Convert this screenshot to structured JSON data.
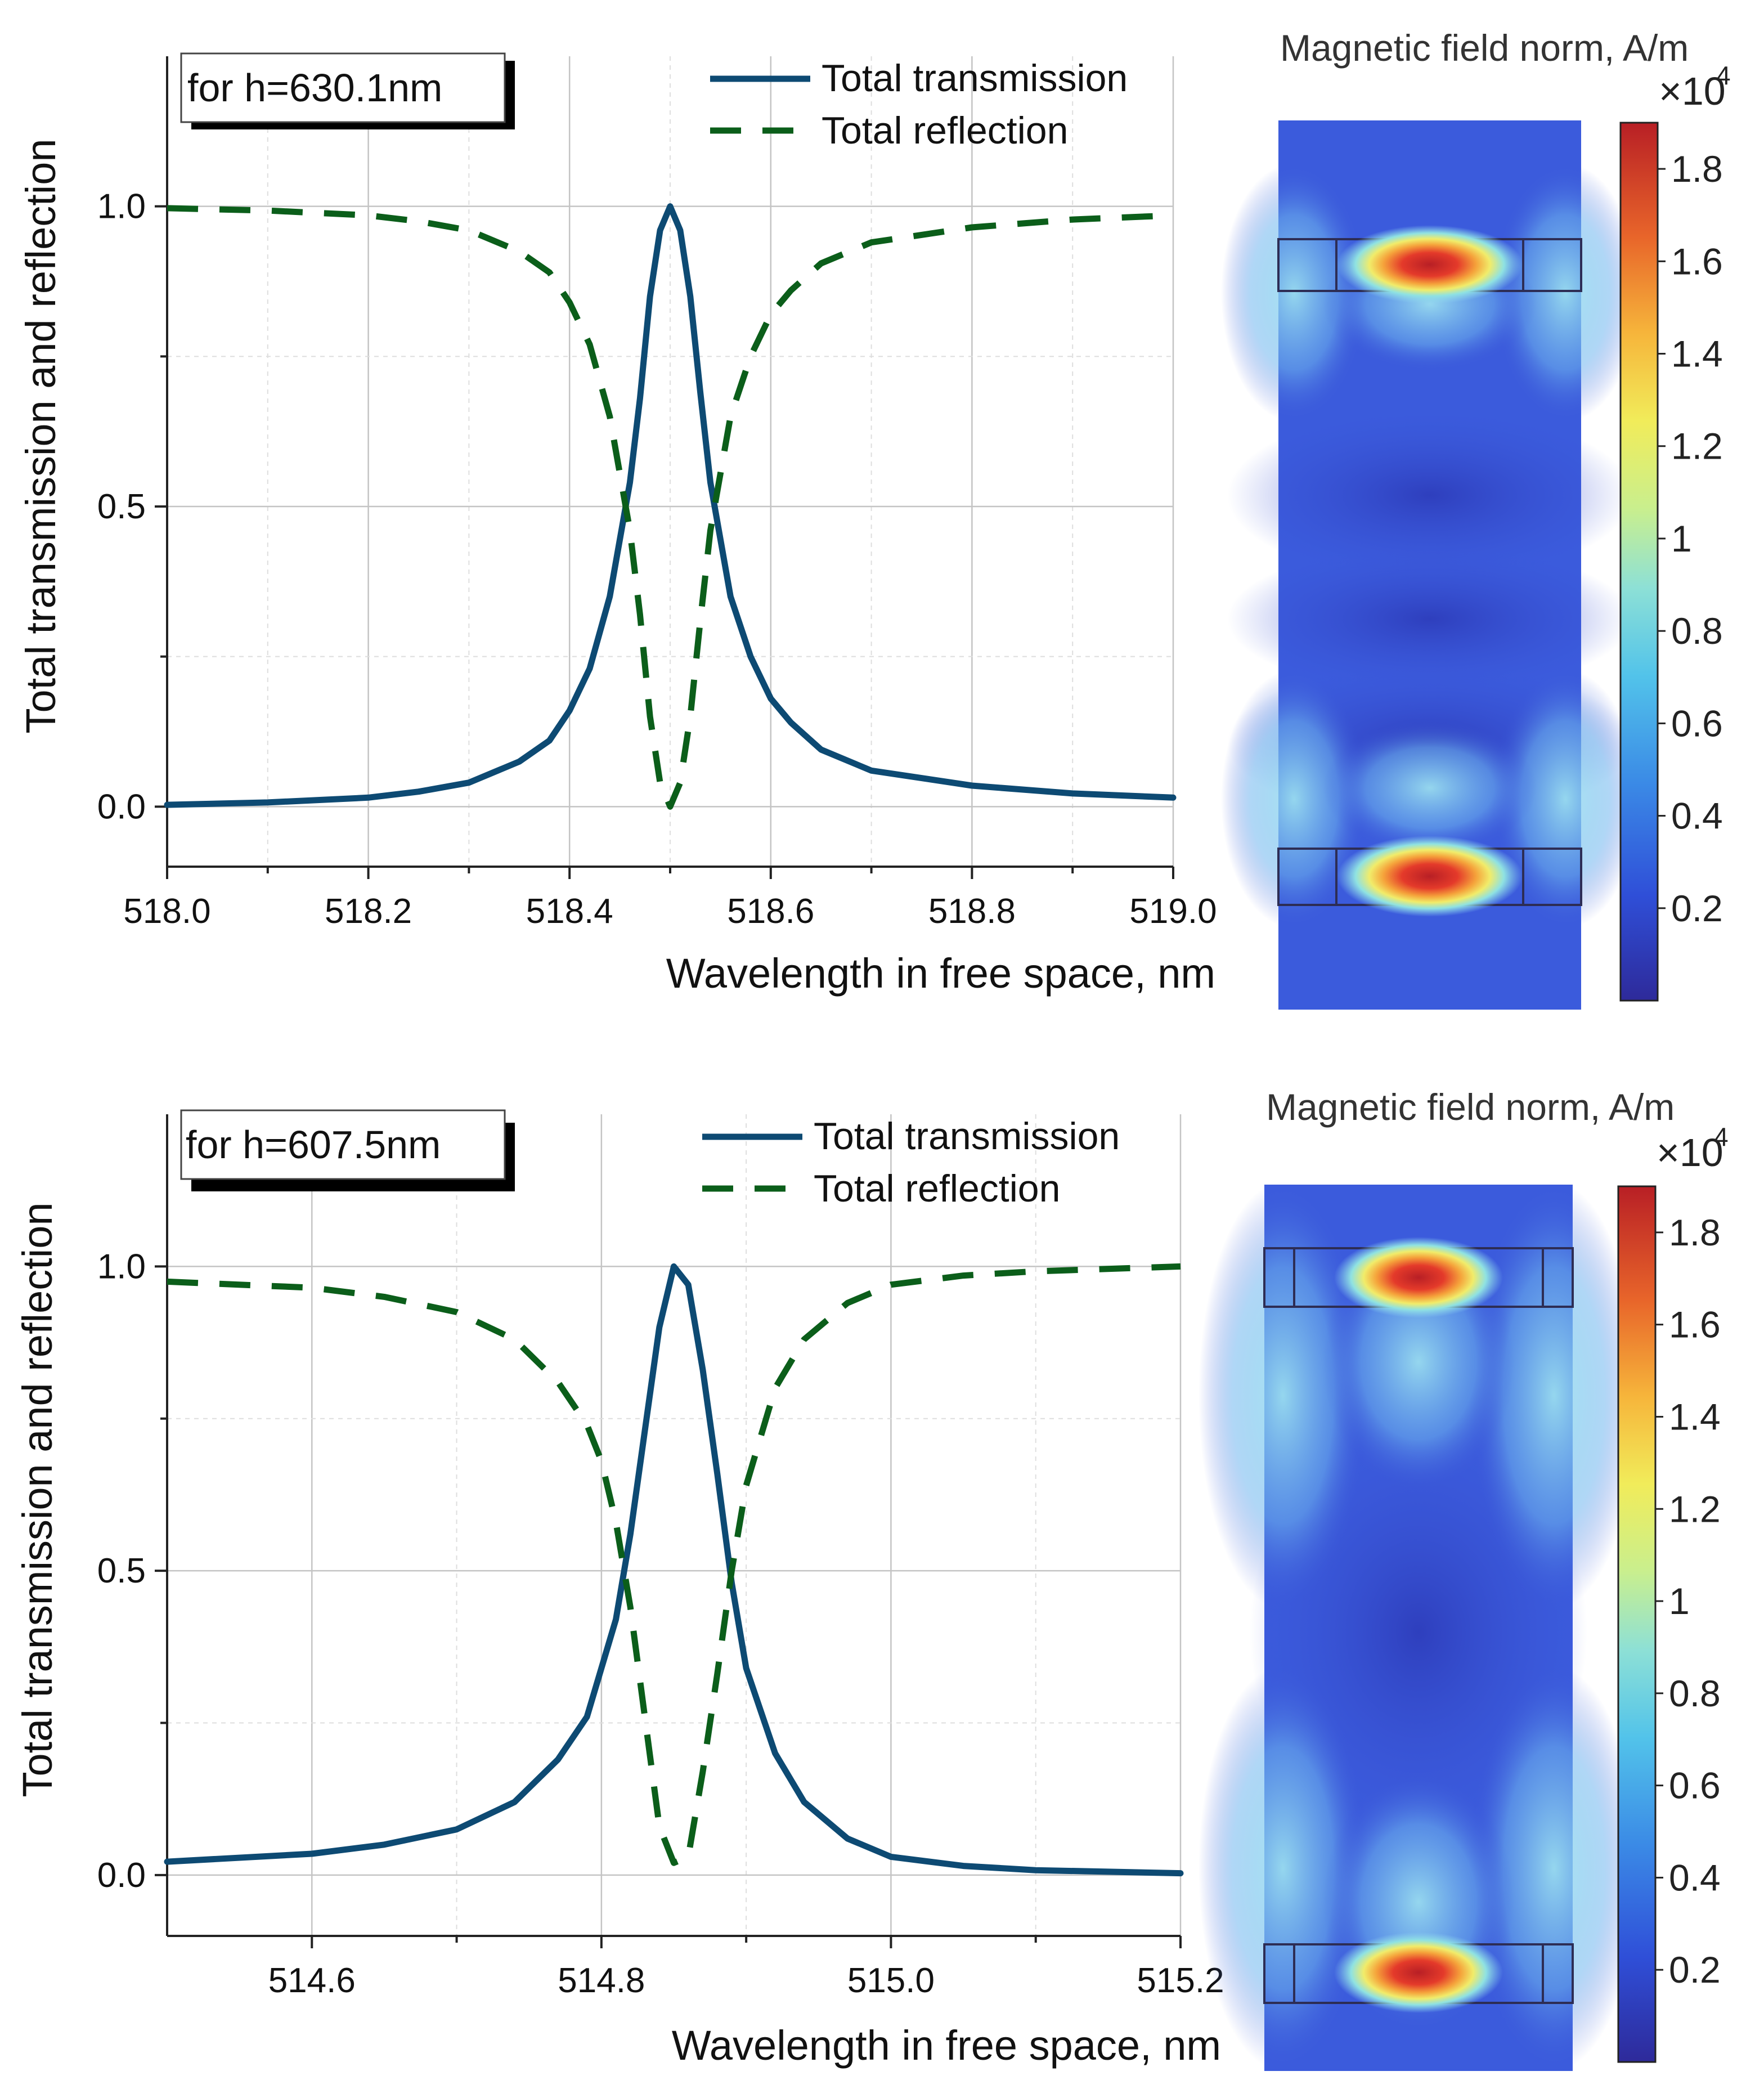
{
  "panels": [
    {
      "chart_data": {
        "type": "line",
        "title": "",
        "annotation": "for h=630.1nm",
        "xlabel": "Wavelength in free space, nm",
        "ylabel": "Total transmission and reflection",
        "xlim": [
          518.0,
          519.0
        ],
        "ylim": [
          -0.1,
          1.25
        ],
        "xticks": [
          518.0,
          518.2,
          518.4,
          518.6,
          518.8,
          519.0
        ],
        "xtick_labels": [
          "518.0",
          "518.2",
          "518.4",
          "518.6",
          "518.8",
          "519.0"
        ],
        "yticks": [
          0.0,
          0.5,
          1.0
        ],
        "ytick_labels": [
          "0.0",
          "0.5",
          "1.0"
        ],
        "grid": true,
        "legend_position": "top-right",
        "series": [
          {
            "name": "Total transmission",
            "style": "solid",
            "color": "#0d4a73",
            "x": [
              518.0,
              518.1,
              518.2,
              518.25,
              518.3,
              518.35,
              518.38,
              518.4,
              518.42,
              518.44,
              518.46,
              518.47,
              518.48,
              518.49,
              518.5,
              518.51,
              518.52,
              518.53,
              518.54,
              518.56,
              518.58,
              518.6,
              518.62,
              518.65,
              518.7,
              518.8,
              518.9,
              519.0
            ],
            "y": [
              0.003,
              0.007,
              0.015,
              0.025,
              0.04,
              0.075,
              0.11,
              0.16,
              0.23,
              0.35,
              0.54,
              0.68,
              0.85,
              0.96,
              1.0,
              0.96,
              0.85,
              0.69,
              0.54,
              0.35,
              0.25,
              0.18,
              0.14,
              0.095,
              0.06,
              0.035,
              0.022,
              0.015
            ]
          },
          {
            "name": "Total reflection",
            "style": "dashed",
            "color": "#0b5e1a",
            "x": [
              518.0,
              518.1,
              518.2,
              518.25,
              518.3,
              518.35,
              518.38,
              518.4,
              518.42,
              518.44,
              518.46,
              518.47,
              518.48,
              518.49,
              518.5,
              518.51,
              518.52,
              518.53,
              518.54,
              518.56,
              518.58,
              518.6,
              518.62,
              518.65,
              518.7,
              518.8,
              518.9,
              519.0
            ],
            "y": [
              0.997,
              0.993,
              0.985,
              0.975,
              0.96,
              0.925,
              0.89,
              0.84,
              0.77,
              0.65,
              0.46,
              0.32,
              0.15,
              0.04,
              0.0,
              0.04,
              0.15,
              0.31,
              0.46,
              0.65,
              0.75,
              0.82,
              0.86,
              0.905,
              0.94,
              0.965,
              0.978,
              0.985
            ]
          }
        ]
      },
      "heatmap": {
        "title": "Magnetic field norm, A/m",
        "colorbar_multiplier": "×10",
        "colorbar_exponent": "4",
        "colorbar_ticks": [
          "1.8",
          "1.6",
          "1.4",
          "1.2",
          "1",
          "0.8",
          "0.6",
          "0.4",
          "0.2"
        ],
        "colorbar_tick_values": [
          1.8,
          1.6,
          1.4,
          1.2,
          1.0,
          0.8,
          0.6,
          0.4,
          0.2
        ],
        "colorbar_max": 1.9,
        "colorbar_min": 0.0
      }
    },
    {
      "chart_data": {
        "type": "line",
        "title": "",
        "annotation": "for h=607.5nm",
        "xlabel": "Wavelength in free space, nm",
        "ylabel": "Total transmission and reflection",
        "xlim": [
          514.5,
          515.2
        ],
        "ylim": [
          -0.1,
          1.25
        ],
        "xticks": [
          514.6,
          514.8,
          515.0,
          515.2
        ],
        "xtick_labels": [
          "514.6",
          "514.8",
          "515.0",
          "515.2"
        ],
        "yticks": [
          0.0,
          0.5,
          1.0
        ],
        "ytick_labels": [
          "0.0",
          "0.5",
          "1.0"
        ],
        "grid": true,
        "legend_position": "top-right",
        "series": [
          {
            "name": "Total transmission",
            "style": "solid",
            "color": "#0d4a73",
            "x": [
              514.5,
              514.6,
              514.65,
              514.7,
              514.74,
              514.77,
              514.79,
              514.81,
              514.82,
              514.83,
              514.84,
              514.85,
              514.86,
              514.87,
              514.88,
              514.89,
              514.9,
              514.92,
              514.94,
              514.97,
              515.0,
              515.05,
              515.1,
              515.2
            ],
            "y": [
              0.022,
              0.035,
              0.05,
              0.075,
              0.12,
              0.19,
              0.26,
              0.42,
              0.56,
              0.73,
              0.9,
              1.0,
              0.97,
              0.83,
              0.66,
              0.48,
              0.34,
              0.2,
              0.12,
              0.06,
              0.03,
              0.015,
              0.008,
              0.003
            ]
          },
          {
            "name": "Total reflection",
            "style": "dashed",
            "color": "#0b5e1a",
            "x": [
              514.5,
              514.6,
              514.65,
              514.7,
              514.74,
              514.77,
              514.79,
              514.8,
              514.81,
              514.82,
              514.83,
              514.84,
              514.85,
              514.86,
              514.87,
              514.88,
              514.89,
              514.9,
              514.92,
              514.94,
              514.97,
              515.0,
              515.05,
              515.1,
              515.2
            ],
            "y": [
              0.975,
              0.965,
              0.95,
              0.925,
              0.88,
              0.81,
              0.74,
              0.68,
              0.58,
              0.44,
              0.26,
              0.08,
              0.02,
              0.03,
              0.17,
              0.33,
              0.5,
              0.64,
              0.8,
              0.88,
              0.94,
              0.97,
              0.985,
              0.992,
              1.0
            ]
          }
        ]
      },
      "heatmap": {
        "title": "Magnetic field norm, A/m",
        "colorbar_multiplier": "×10",
        "colorbar_exponent": "4",
        "colorbar_ticks": [
          "1.8",
          "1.6",
          "1.4",
          "1.2",
          "1",
          "0.8",
          "0.6",
          "0.4",
          "0.2"
        ],
        "colorbar_tick_values": [
          1.8,
          1.6,
          1.4,
          1.2,
          1.0,
          0.8,
          0.6,
          0.4,
          0.2
        ],
        "colorbar_max": 1.9,
        "colorbar_min": 0.0
      }
    }
  ],
  "colors": {
    "transmission": "#0d4a73",
    "reflection": "#0b5e1a",
    "grid": "#c8c8c8",
    "axis": "#222222"
  }
}
